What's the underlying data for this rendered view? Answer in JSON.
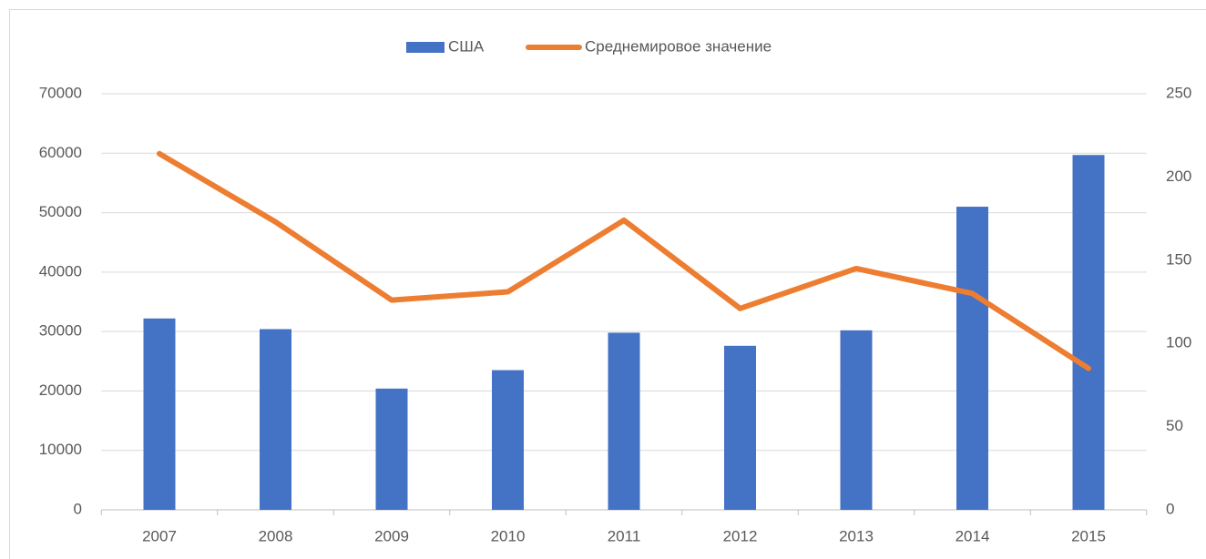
{
  "chart_data": {
    "type": "bar_line",
    "categories": [
      "2007",
      "2008",
      "2009",
      "2010",
      "2011",
      "2012",
      "2013",
      "2014",
      "2015"
    ],
    "series": [
      {
        "name": "США",
        "type": "bar",
        "color": "#4472c4",
        "values": [
          32200,
          30400,
          20400,
          23500,
          29800,
          27600,
          30200,
          51000,
          59700
        ]
      },
      {
        "name": "Среднемировое значение",
        "type": "line",
        "axis": "y2",
        "color": "#ed7d31",
        "values": [
          214,
          173,
          126,
          131,
          174,
          121,
          145,
          130,
          85
        ]
      }
    ],
    "ylim": [
      0,
      70000
    ],
    "yticks": [
      0,
      10000,
      20000,
      30000,
      40000,
      50000,
      60000,
      70000
    ],
    "y2lim": [
      0,
      250
    ],
    "y2ticks": [
      0,
      50,
      100,
      150,
      200,
      250
    ],
    "grid": true,
    "legend": "top"
  }
}
